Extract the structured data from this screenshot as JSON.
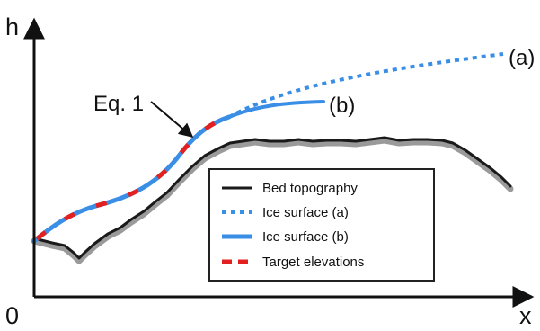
{
  "axes": {
    "y_label": "h",
    "x_label": "x",
    "origin_label": "0"
  },
  "labels": {
    "curve_a": "(a)",
    "curve_b": "(b)",
    "equation": "Eq. 1"
  },
  "legend": {
    "items": [
      {
        "key": "bed",
        "label": "Bed topography",
        "style": "solid",
        "color": "#1a1a1a"
      },
      {
        "key": "ice_a",
        "label": "Ice surface (a)",
        "style": "dotted",
        "color": "#3a8ee6"
      },
      {
        "key": "ice_b",
        "label": "Ice surface (b)",
        "style": "solid",
        "color": "#3a8ee6"
      },
      {
        "key": "target",
        "label": "Target elevations",
        "style": "dashed",
        "color": "#e32020"
      }
    ]
  },
  "colors": {
    "axis": "#111111",
    "bed": "#1a1a1a",
    "bed_shadow": "#9a9a9a",
    "ice": "#3a8ee6",
    "target": "#e32020",
    "legend_border": "#222222"
  }
}
